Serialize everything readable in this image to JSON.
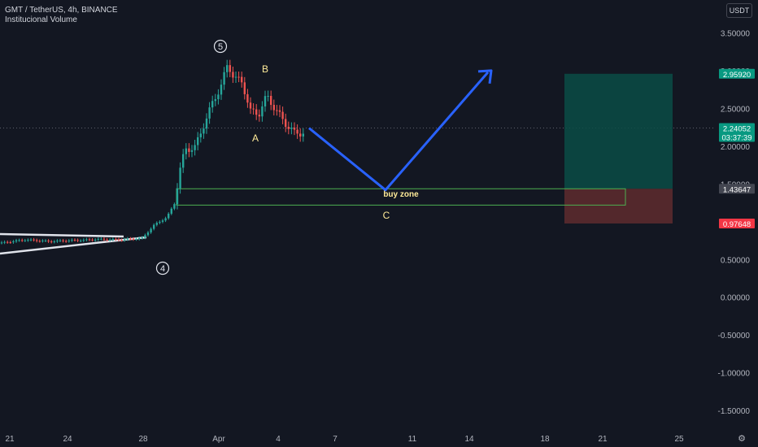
{
  "header": {
    "symbol_line": "GMT / TetherUS, 4h, BINANCE",
    "indicator": "Institucional Volume",
    "currency": "USDT"
  },
  "colors": {
    "background": "#131722",
    "candle_up": "#26a69a",
    "candle_down": "#ef5350",
    "wave_path": "#2962ff",
    "buy_zone": "#4caf50",
    "target_zone": "#0b4c45",
    "stop_zone": "#5b2a2d",
    "annotation_yellow": "#ffeb99",
    "axis_text": "#b2b5be"
  },
  "chart_data": {
    "type": "candlestick",
    "title": "GMT / TetherUS, 4h, BINANCE",
    "timeframe": "4h",
    "xlabel": "",
    "ylabel": "",
    "x_ticks": [
      "21",
      "24",
      "28",
      "Apr",
      "4",
      "7",
      "11",
      "14",
      "18",
      "21",
      "25"
    ],
    "y_ticks": [
      "3.50000",
      "3.00000",
      "2.50000",
      "2.00000",
      "1.50000",
      "1.00000",
      "0.50000",
      "0.00000",
      "-0.50000",
      "-1.00000",
      "-1.50000"
    ],
    "ylim": [
      -1.62,
      3.9
    ],
    "price_labels": [
      {
        "text": "2.95920",
        "value": 2.9592,
        "kind": "target"
      },
      {
        "text": "2.24052",
        "value": 2.24052,
        "kind": "current"
      },
      {
        "text": "03:37:39",
        "value": 2.1,
        "kind": "countdown"
      },
      {
        "text": "1.43647",
        "value": 1.43647,
        "kind": "entry"
      },
      {
        "text": "0.97648",
        "value": 0.97648,
        "kind": "stop"
      }
    ],
    "current_price": 2.24052,
    "candles_approx": {
      "dates": [
        "Mar 21",
        "Mar 24",
        "Mar 28",
        "Mar 29",
        "Mar 30",
        "Mar 31",
        "Apr 1",
        "Apr 2",
        "Apr 3",
        "Apr 4",
        "Apr 5"
      ],
      "close": [
        0.72,
        0.78,
        0.77,
        1.05,
        1.45,
        2.05,
        2.9,
        2.55,
        2.5,
        2.3,
        2.24
      ]
    },
    "annotations": [
      {
        "text": "⑤",
        "label": "wave 5",
        "date": "Apr 1",
        "price": 3.6
      },
      {
        "text": "④",
        "label": "wave 4",
        "date": "Mar 28",
        "price": 0.35
      },
      {
        "text": "A",
        "date": "Apr 2",
        "price": 2.0
      },
      {
        "text": "B",
        "date": "Apr 3",
        "price": 2.98
      },
      {
        "text": "C",
        "date": "Apr 9",
        "price": 1.02
      },
      {
        "text": "buy zone",
        "price": 1.33
      }
    ],
    "buy_zone": {
      "from": 1.22,
      "to": 1.43647
    },
    "position": {
      "target": 2.9592,
      "entry": 1.43647,
      "stop": 0.97648
    },
    "projection_path_prices": [
      2.24,
      1.42,
      2.98
    ],
    "grid": false,
    "legend": "none"
  }
}
